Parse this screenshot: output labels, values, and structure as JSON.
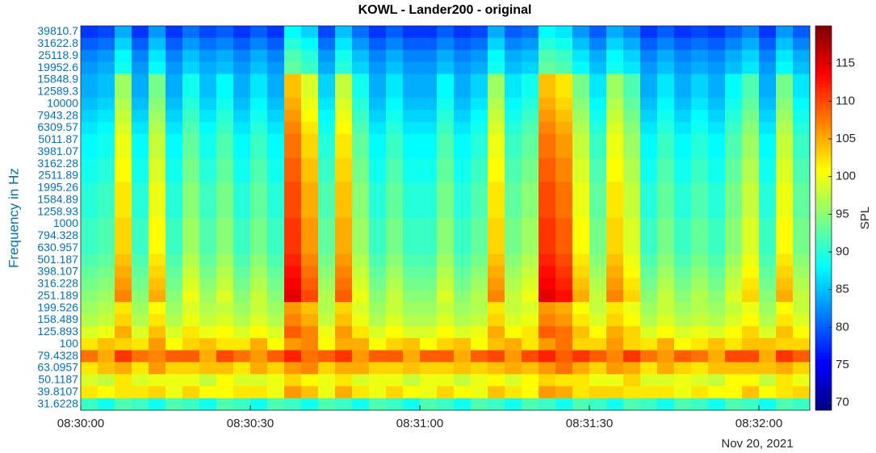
{
  "chart_data": {
    "type": "heatmap",
    "title": "KOWL - Lander200 - original",
    "ylabel": "Frequency in Hz",
    "colorbar_label": "SPL",
    "date_label": "Nov 20, 2021",
    "colormap": "jet",
    "zlim": [
      69,
      120
    ],
    "colorbar_ticks": [
      70,
      75,
      80,
      85,
      90,
      95,
      100,
      105,
      110,
      115
    ],
    "xlim": [
      0,
      129
    ],
    "xticks": [
      {
        "value": 0,
        "label": "08:30:00"
      },
      {
        "value": 30,
        "label": "08:30:30"
      },
      {
        "value": 60,
        "label": "08:31:00"
      },
      {
        "value": 90,
        "label": "08:31:30"
      },
      {
        "value": 120,
        "label": "08:32:00"
      }
    ],
    "y_categories": [
      39810.7,
      31622.8,
      25118.9,
      19952.6,
      15848.9,
      12589.3,
      10000,
      7943.28,
      6309.57,
      5011.87,
      3981.07,
      3162.28,
      2511.89,
      1995.26,
      1584.89,
      1258.93,
      1000,
      794.328,
      630.957,
      501.187,
      398.107,
      316.228,
      251.189,
      199.526,
      158.489,
      125.893,
      100,
      79.4328,
      63.0957,
      50.1187,
      39.8107,
      31.6228
    ],
    "x": [
      1.5,
      4.5,
      7.5,
      10.5,
      13.5,
      16.5,
      19.5,
      22.5,
      25.5,
      28.5,
      31.5,
      34.5,
      37.5,
      40.5,
      43.5,
      46.5,
      49.5,
      52.5,
      55.5,
      58.5,
      61.5,
      64.5,
      67.5,
      70.5,
      73.5,
      76.5,
      79.5,
      82.5,
      85.5,
      88.5,
      91.5,
      94.5,
      97.5,
      100.5,
      103.5,
      106.5,
      109.5,
      112.5,
      115.5,
      118.5,
      121.5,
      124.5,
      127.5
    ],
    "z": [
      [
        78,
        79,
        84,
        78,
        83,
        78,
        81,
        79,
        80,
        78,
        80,
        78,
        88,
        86,
        79,
        85,
        81,
        78,
        80,
        78,
        78,
        80,
        78,
        79,
        84,
        80,
        81,
        88,
        87,
        83,
        80,
        84,
        82,
        78,
        80,
        78,
        79,
        78,
        80,
        82,
        78,
        83,
        80
      ],
      [
        80,
        81,
        86,
        80,
        85,
        80,
        83,
        81,
        82,
        80,
        82,
        80,
        90,
        88,
        81,
        87,
        83,
        80,
        82,
        80,
        80,
        82,
        80,
        81,
        86,
        82,
        83,
        90,
        89,
        85,
        82,
        86,
        84,
        80,
        82,
        80,
        81,
        80,
        82,
        84,
        80,
        85,
        82
      ],
      [
        82,
        83,
        88,
        82,
        87,
        82,
        85,
        83,
        84,
        82,
        84,
        82,
        92,
        90,
        83,
        89,
        85,
        82,
        84,
        82,
        82,
        84,
        82,
        83,
        88,
        84,
        85,
        92,
        91,
        87,
        84,
        88,
        86,
        82,
        84,
        82,
        83,
        82,
        84,
        86,
        82,
        87,
        84
      ],
      [
        83,
        84,
        89,
        83,
        88,
        83,
        86,
        84,
        85,
        83,
        85,
        83,
        93,
        91,
        84,
        90,
        86,
        83,
        85,
        83,
        83,
        85,
        83,
        84,
        89,
        85,
        86,
        93,
        92,
        88,
        85,
        89,
        87,
        83,
        85,
        83,
        84,
        83,
        85,
        87,
        83,
        88,
        85
      ],
      [
        84,
        85,
        96,
        84,
        94,
        84,
        89,
        85,
        88,
        84,
        87,
        84,
        104,
        99,
        86,
        98,
        89,
        84,
        87,
        84,
        84,
        88,
        84,
        86,
        96,
        87,
        89,
        104,
        102,
        94,
        87,
        96,
        92,
        84,
        87,
        84,
        86,
        84,
        88,
        92,
        84,
        94,
        87
      ],
      [
        84,
        85,
        96,
        84,
        94,
        84,
        89,
        85,
        88,
        84,
        87,
        84,
        104,
        99,
        86,
        98,
        89,
        84,
        87,
        84,
        84,
        88,
        84,
        86,
        96,
        87,
        89,
        104,
        102,
        94,
        87,
        96,
        92,
        84,
        87,
        84,
        86,
        84,
        88,
        92,
        84,
        94,
        87
      ],
      [
        85,
        86,
        97,
        85,
        95,
        85,
        90,
        86,
        89,
        85,
        88,
        85,
        105,
        100,
        87,
        99,
        90,
        85,
        88,
        85,
        85,
        89,
        85,
        87,
        97,
        88,
        90,
        105,
        103,
        95,
        88,
        97,
        93,
        85,
        88,
        85,
        87,
        85,
        89,
        93,
        85,
        95,
        88
      ],
      [
        86,
        87,
        98,
        86,
        96,
        86,
        91,
        87,
        90,
        86,
        89,
        86,
        106,
        101,
        88,
        100,
        91,
        86,
        89,
        86,
        86,
        90,
        86,
        88,
        98,
        89,
        91,
        106,
        104,
        96,
        89,
        98,
        94,
        86,
        89,
        86,
        88,
        86,
        90,
        94,
        86,
        96,
        89
      ],
      [
        87,
        88,
        99,
        87,
        97,
        87,
        92,
        88,
        91,
        87,
        90,
        87,
        107,
        102,
        89,
        101,
        92,
        87,
        90,
        87,
        87,
        91,
        87,
        89,
        99,
        90,
        92,
        107,
        105,
        97,
        90,
        99,
        95,
        87,
        90,
        87,
        89,
        87,
        91,
        95,
        87,
        97,
        90
      ],
      [
        88,
        89,
        100,
        88,
        98,
        88,
        93,
        89,
        92,
        88,
        91,
        88,
        108,
        103,
        90,
        102,
        93,
        88,
        91,
        88,
        88,
        92,
        88,
        90,
        100,
        91,
        93,
        108,
        106,
        98,
        91,
        100,
        96,
        88,
        91,
        88,
        90,
        88,
        92,
        96,
        88,
        98,
        91
      ],
      [
        88,
        89,
        100,
        88,
        98,
        88,
        93,
        89,
        92,
        88,
        91,
        88,
        108,
        103,
        90,
        102,
        93,
        88,
        91,
        88,
        88,
        92,
        88,
        90,
        100,
        91,
        93,
        108,
        106,
        98,
        91,
        100,
        96,
        88,
        91,
        88,
        90,
        88,
        92,
        96,
        88,
        98,
        91
      ],
      [
        89,
        90,
        101,
        89,
        99,
        89,
        94,
        90,
        93,
        89,
        92,
        89,
        109,
        104,
        91,
        103,
        94,
        89,
        92,
        89,
        89,
        93,
        89,
        91,
        101,
        92,
        94,
        109,
        107,
        99,
        92,
        101,
        97,
        89,
        92,
        89,
        91,
        89,
        93,
        97,
        89,
        99,
        92
      ],
      [
        89,
        90,
        101,
        89,
        99,
        89,
        94,
        90,
        93,
        89,
        92,
        89,
        109,
        104,
        91,
        103,
        94,
        89,
        92,
        89,
        89,
        93,
        89,
        91,
        101,
        92,
        94,
        109,
        107,
        99,
        92,
        101,
        97,
        89,
        92,
        89,
        91,
        89,
        93,
        97,
        89,
        99,
        92
      ],
      [
        90,
        91,
        102,
        90,
        100,
        90,
        95,
        91,
        94,
        90,
        93,
        90,
        110,
        105,
        92,
        104,
        95,
        90,
        93,
        90,
        90,
        94,
        90,
        92,
        102,
        93,
        95,
        110,
        108,
        100,
        93,
        102,
        98,
        90,
        93,
        90,
        92,
        90,
        94,
        98,
        90,
        100,
        93
      ],
      [
        90,
        91,
        102,
        90,
        100,
        90,
        95,
        91,
        94,
        90,
        93,
        90,
        110,
        105,
        92,
        104,
        95,
        90,
        93,
        90,
        90,
        94,
        90,
        92,
        102,
        93,
        95,
        110,
        108,
        100,
        93,
        102,
        98,
        90,
        93,
        90,
        92,
        90,
        94,
        98,
        90,
        100,
        93
      ],
      [
        90,
        91,
        102,
        90,
        100,
        90,
        95,
        91,
        94,
        90,
        93,
        90,
        110,
        105,
        92,
        104,
        95,
        90,
        93,
        90,
        90,
        94,
        90,
        92,
        102,
        93,
        95,
        110,
        108,
        100,
        93,
        102,
        98,
        90,
        93,
        90,
        92,
        90,
        94,
        98,
        90,
        100,
        93
      ],
      [
        91,
        92,
        103,
        91,
        101,
        91,
        96,
        92,
        95,
        91,
        94,
        91,
        111,
        106,
        93,
        105,
        96,
        91,
        94,
        91,
        91,
        95,
        91,
        93,
        103,
        94,
        96,
        111,
        109,
        101,
        94,
        103,
        99,
        91,
        94,
        91,
        93,
        91,
        95,
        99,
        91,
        101,
        94
      ],
      [
        91,
        92,
        103,
        91,
        101,
        91,
        96,
        92,
        95,
        91,
        94,
        91,
        111,
        106,
        93,
        105,
        96,
        91,
        94,
        91,
        91,
        95,
        91,
        93,
        103,
        94,
        96,
        111,
        109,
        101,
        94,
        103,
        99,
        91,
        94,
        91,
        93,
        91,
        95,
        99,
        91,
        101,
        94
      ],
      [
        91,
        92,
        103,
        91,
        101,
        91,
        96,
        92,
        95,
        91,
        94,
        91,
        111,
        106,
        93,
        105,
        96,
        91,
        94,
        91,
        91,
        95,
        91,
        93,
        103,
        94,
        96,
        111,
        109,
        101,
        94,
        103,
        99,
        91,
        94,
        91,
        93,
        91,
        95,
        99,
        91,
        101,
        94
      ],
      [
        92,
        93,
        104,
        92,
        102,
        92,
        97,
        93,
        96,
        92,
        95,
        92,
        112,
        107,
        94,
        106,
        97,
        92,
        95,
        92,
        92,
        96,
        92,
        94,
        104,
        95,
        97,
        112,
        110,
        102,
        95,
        104,
        100,
        92,
        95,
        92,
        94,
        92,
        96,
        100,
        92,
        102,
        95
      ],
      [
        93,
        94,
        105,
        93,
        103,
        93,
        98,
        94,
        97,
        93,
        96,
        93,
        113,
        108,
        95,
        107,
        98,
        93,
        96,
        93,
        93,
        97,
        93,
        95,
        105,
        96,
        98,
        113,
        111,
        103,
        96,
        105,
        101,
        93,
        96,
        93,
        95,
        93,
        97,
        101,
        93,
        103,
        96
      ],
      [
        94,
        95,
        106,
        94,
        104,
        94,
        99,
        95,
        98,
        94,
        97,
        94,
        114,
        109,
        96,
        108,
        99,
        94,
        97,
        94,
        94,
        98,
        94,
        96,
        106,
        97,
        99,
        114,
        112,
        104,
        97,
        106,
        102,
        94,
        97,
        94,
        96,
        94,
        98,
        102,
        94,
        104,
        97
      ],
      [
        95,
        96,
        107,
        95,
        105,
        95,
        100,
        96,
        99,
        95,
        98,
        95,
        115,
        110,
        97,
        109,
        100,
        95,
        98,
        95,
        95,
        99,
        95,
        97,
        107,
        98,
        100,
        115,
        113,
        105,
        98,
        107,
        103,
        95,
        98,
        95,
        97,
        95,
        99,
        103,
        95,
        105,
        98
      ],
      [
        96,
        97,
        102,
        96,
        101,
        96,
        99,
        97,
        98,
        96,
        98,
        96,
        106,
        104,
        97,
        103,
        99,
        96,
        98,
        96,
        96,
        98,
        96,
        97,
        102,
        98,
        99,
        106,
        105,
        101,
        98,
        102,
        100,
        96,
        98,
        96,
        97,
        96,
        98,
        100,
        96,
        101,
        98
      ],
      [
        97,
        98,
        103,
        97,
        102,
        97,
        100,
        98,
        99,
        97,
        99,
        97,
        107,
        105,
        98,
        104,
        100,
        97,
        99,
        97,
        97,
        99,
        97,
        98,
        103,
        99,
        100,
        107,
        106,
        102,
        99,
        103,
        101,
        97,
        99,
        97,
        98,
        97,
        99,
        101,
        97,
        102,
        99
      ],
      [
        99,
        100,
        105,
        99,
        104,
        99,
        102,
        100,
        101,
        99,
        101,
        99,
        109,
        107,
        100,
        106,
        102,
        99,
        101,
        99,
        99,
        101,
        99,
        100,
        105,
        101,
        102,
        109,
        108,
        104,
        101,
        105,
        103,
        99,
        101,
        99,
        100,
        99,
        101,
        103,
        99,
        104,
        101
      ],
      [
        102,
        104,
        103,
        102,
        106,
        101,
        103,
        104,
        102,
        102,
        105,
        101,
        106,
        107,
        101,
        105,
        105,
        101,
        103,
        104,
        101,
        103,
        104,
        101,
        104,
        105,
        102,
        106,
        108,
        103,
        103,
        106,
        103,
        102,
        105,
        101,
        102,
        104,
        102,
        104,
        104,
        103,
        103
      ],
      [
        108,
        105,
        111,
        108,
        107,
        109,
        109,
        105,
        110,
        108,
        106,
        109,
        112,
        108,
        109,
        111,
        106,
        109,
        109,
        105,
        109,
        109,
        105,
        109,
        110,
        106,
        110,
        112,
        109,
        111,
        109,
        107,
        111,
        108,
        106,
        109,
        108,
        105,
        110,
        110,
        105,
        111,
        109
      ],
      [
        102,
        104,
        105,
        102,
        106,
        103,
        103,
        104,
        104,
        102,
        105,
        103,
        106,
        107,
        103,
        105,
        105,
        103,
        103,
        104,
        103,
        103,
        104,
        103,
        104,
        105,
        104,
        106,
        108,
        105,
        103,
        106,
        105,
        102,
        105,
        103,
        102,
        104,
        104,
        104,
        104,
        105,
        103
      ],
      [
        99,
        98,
        102,
        99,
        100,
        100,
        100,
        98,
        101,
        99,
        99,
        100,
        103,
        101,
        100,
        102,
        99,
        100,
        100,
        98,
        100,
        100,
        98,
        100,
        101,
        99,
        101,
        103,
        102,
        102,
        100,
        100,
        103,
        99,
        99,
        100,
        99,
        98,
        101,
        101,
        98,
        102,
        100
      ],
      [
        102,
        101,
        102,
        102,
        103,
        100,
        103,
        101,
        101,
        102,
        102,
        100,
        106,
        104,
        100,
        105,
        102,
        100,
        103,
        101,
        100,
        103,
        101,
        100,
        104,
        102,
        101,
        106,
        105,
        102,
        103,
        103,
        102,
        102,
        102,
        100,
        102,
        101,
        101,
        104,
        101,
        102,
        103
      ],
      [
        91,
        89,
        92,
        91,
        89,
        92,
        91,
        89,
        92,
        91,
        89,
        92,
        91,
        89,
        92,
        91,
        89,
        92,
        91,
        89,
        92,
        91,
        89,
        92,
        91,
        89,
        92,
        91,
        89,
        92,
        91,
        89,
        92,
        91,
        89,
        92,
        91,
        89,
        92,
        91,
        89,
        92,
        91
      ]
    ]
  }
}
